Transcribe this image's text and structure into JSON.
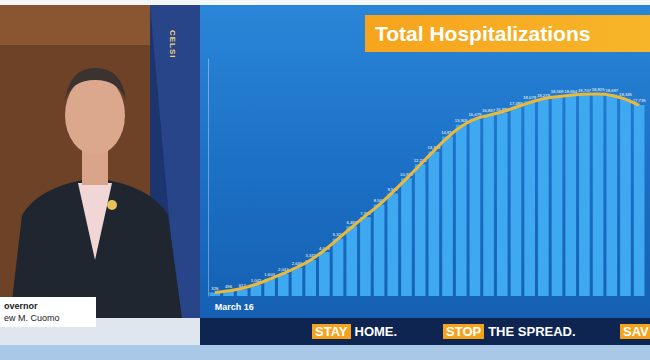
{
  "chart_data": {
    "type": "bar",
    "title": "Total Hospitalizations",
    "categories": [
      "March 16",
      null,
      null,
      null,
      null,
      null,
      null,
      null,
      null,
      null,
      null,
      null,
      null,
      null,
      null,
      null,
      null,
      null,
      null,
      null,
      null,
      null,
      null,
      null,
      null,
      null,
      null,
      null,
      null,
      null,
      null,
      null
    ],
    "series": [
      {
        "type": "bar",
        "color": "#3ea8f0",
        "values": [
          326,
          496,
          617,
          1042,
          1603,
          2043,
          2635,
          3343,
          4079,
          5327,
          6481,
          7328,
          8503,
          9517,
          10929,
          12226,
          13383,
          14810,
          15905,
          16479,
          16837,
          16980,
          17493,
          18079,
          18279,
          18569,
          18654,
          18707,
          18825,
          18697,
          18335,
          17735
        ],
        "value_labels": [
          "326",
          "496",
          "617",
          "1,042",
          "1,603",
          "2,043",
          "2,635",
          "3,343",
          "4,079",
          "5,327",
          "6,481",
          "7,328",
          "8,503",
          "9,517",
          "10,929",
          "12,226",
          "13,383",
          "14,810",
          "15,905",
          "16,479",
          "16,837",
          "16,980",
          "17,493",
          "18,079",
          "18,279",
          "18,569",
          "18,654",
          "18,707",
          "18,825",
          "18,697",
          "18,335",
          "17,735"
        ]
      },
      {
        "type": "line",
        "color": "#e8b93a",
        "values": [
          330,
          480,
          720,
          1090,
          1560,
          2090,
          2670,
          3350,
          4250,
          5300,
          6380,
          7440,
          8450,
          9650,
          10890,
          12180,
          13470,
          14700,
          15730,
          16410,
          16770,
          17100,
          17520,
          17950,
          18310,
          18500,
          18640,
          18730,
          18740,
          18620,
          18260,
          17700
        ]
      }
    ],
    "ylim": [
      0,
      22000
    ],
    "grid": false,
    "data_labels": true,
    "tick_labels": "x"
  },
  "footer": {
    "slogans": [
      {
        "highlight": "STAY",
        "text": "HOME."
      },
      {
        "highlight": "STOP",
        "text": "THE SPREAD."
      },
      {
        "highlight": "SAV"
      }
    ]
  },
  "nameplate": {
    "lines": [
      "overnor",
      "ew M. Cuomo"
    ]
  },
  "flag": {
    "text": "CELSI"
  }
}
